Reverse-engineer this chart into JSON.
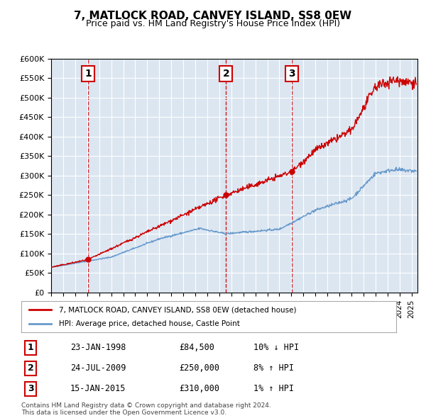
{
  "title": "7, MATLOCK ROAD, CANVEY ISLAND, SS8 0EW",
  "subtitle": "Price paid vs. HM Land Registry's House Price Index (HPI)",
  "ylabel_ticks": [
    "£0",
    "£50K",
    "£100K",
    "£150K",
    "£200K",
    "£250K",
    "£300K",
    "£350K",
    "£400K",
    "£450K",
    "£500K",
    "£550K",
    "£600K"
  ],
  "ytick_values": [
    0,
    50000,
    100000,
    150000,
    200000,
    250000,
    300000,
    350000,
    400000,
    450000,
    500000,
    550000,
    600000
  ],
  "xmin": 1995.0,
  "xmax": 2025.5,
  "ymin": 0,
  "ymax": 600000,
  "transactions": [
    {
      "id": 1,
      "date_x": 1998.07,
      "price": 84500,
      "label": "23-JAN-1998",
      "amount": "£84,500",
      "hpi_note": "10% ↓ HPI"
    },
    {
      "id": 2,
      "date_x": 2009.56,
      "price": 250000,
      "label": "24-JUL-2009",
      "amount": "£250,000",
      "hpi_note": "8% ↑ HPI"
    },
    {
      "id": 3,
      "date_x": 2015.04,
      "price": 310000,
      "label": "15-JAN-2015",
      "amount": "£310,000",
      "hpi_note": "1% ↑ HPI"
    }
  ],
  "legend_line1": "7, MATLOCK ROAD, CANVEY ISLAND, SS8 0EW (detached house)",
  "legend_line2": "HPI: Average price, detached house, Castle Point",
  "footnote1": "Contains HM Land Registry data © Crown copyright and database right 2024.",
  "footnote2": "This data is licensed under the Open Government Licence v3.0.",
  "price_color": "#cc0000",
  "hpi_color": "#6699cc",
  "bg_color": "#dce6f1",
  "plot_bg": "#dce6f1"
}
